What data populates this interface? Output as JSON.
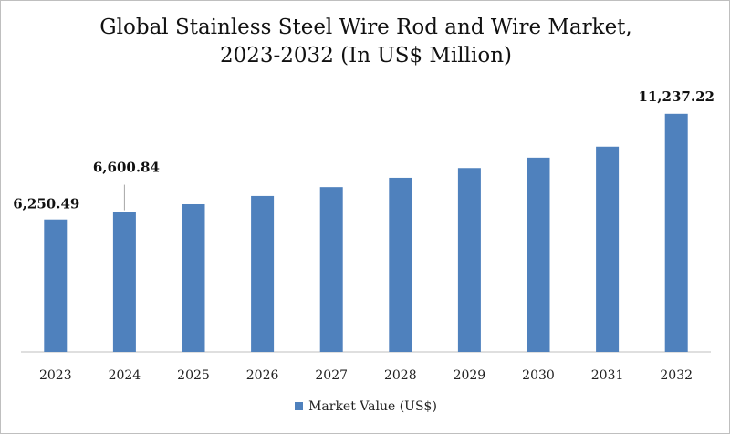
{
  "chart_data": {
    "type": "bar",
    "title_line1": "Global Stainless Steel Wire Rod and Wire Market,",
    "title_line2": "2023-2032 (In US$ Million)",
    "xlabel": "",
    "ylabel": "",
    "categories": [
      "2023",
      "2024",
      "2025",
      "2026",
      "2027",
      "2028",
      "2029",
      "2030",
      "2031",
      "2032"
    ],
    "series": [
      {
        "name": "Market Value (US$)",
        "values": [
          6250.49,
          6600.84,
          6970,
          7360,
          7780,
          8220,
          8680,
          9170,
          9690,
          11237.22
        ]
      }
    ],
    "data_labels": {
      "0": "6,250.49",
      "1": "6,600.84",
      "9": "11,237.22"
    },
    "ylim": [
      0,
      11500
    ],
    "grid": false,
    "legend_position": "bottom",
    "bar_color": "#4f81bd"
  }
}
